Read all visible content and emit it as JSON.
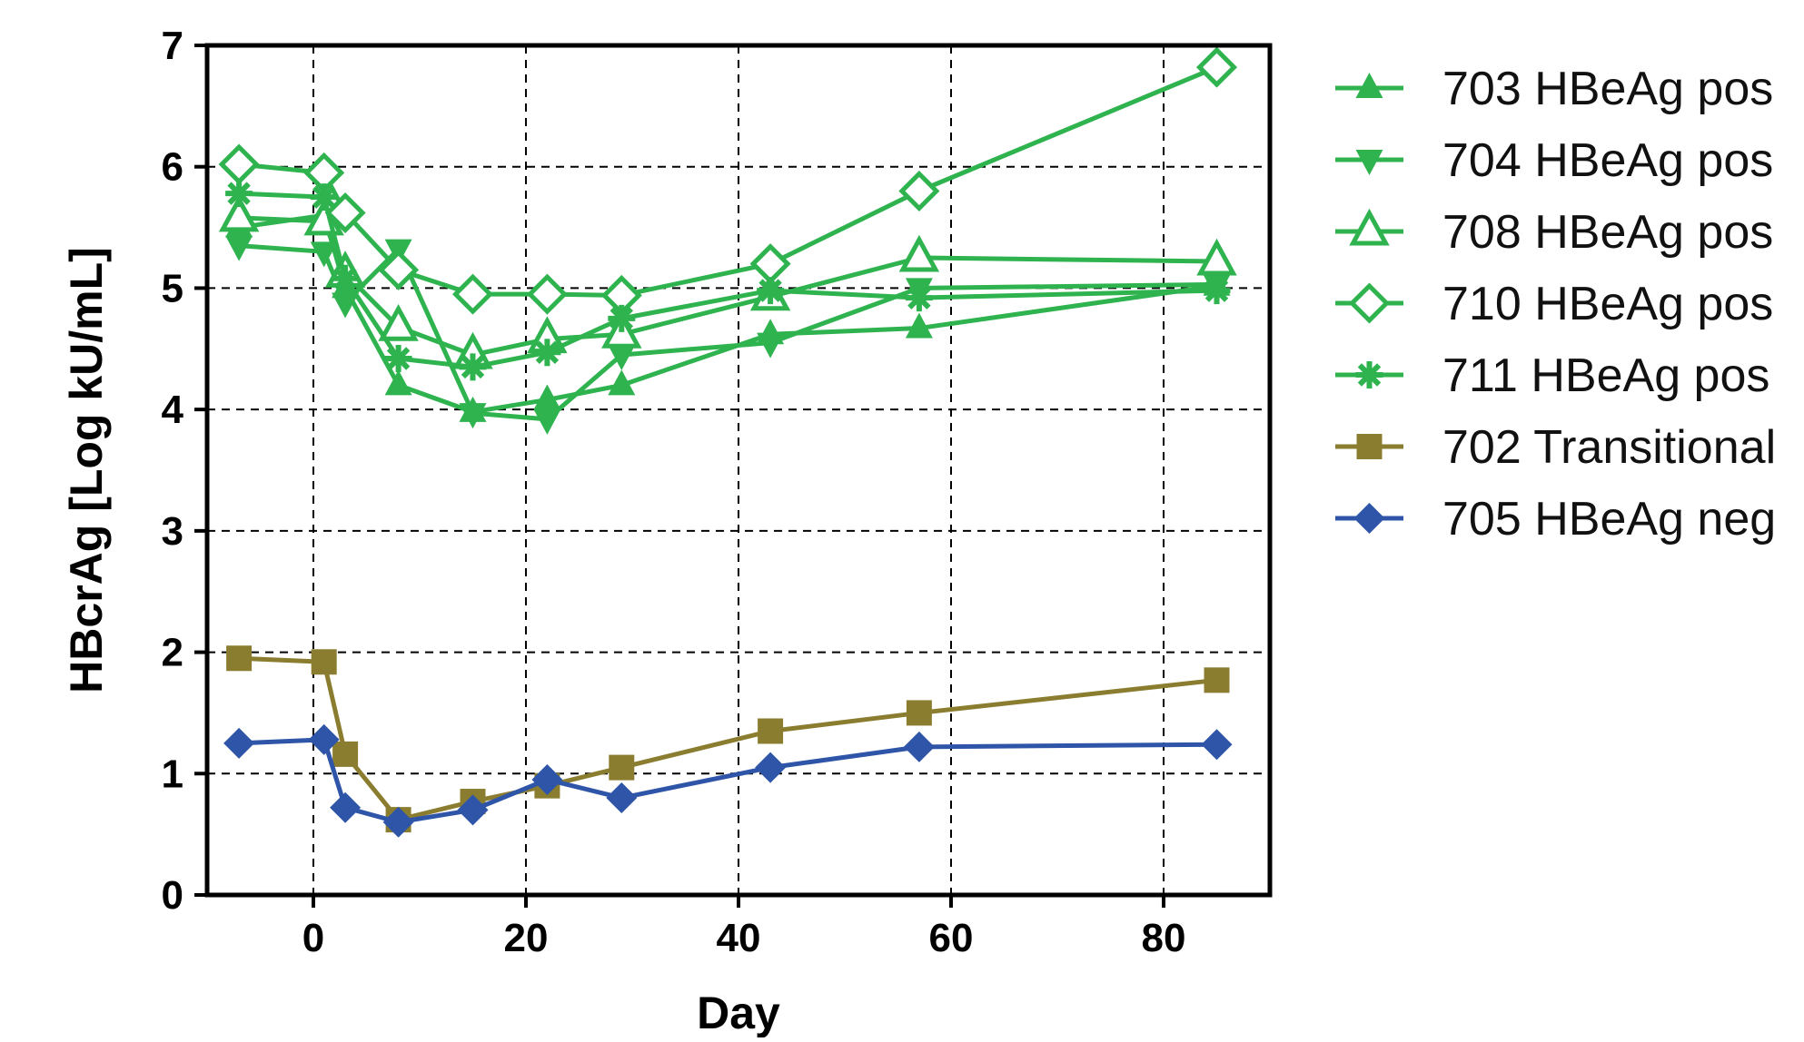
{
  "chart_data": {
    "type": "line",
    "title": "",
    "xlabel": "Day",
    "ylabel": "HBcrAg [Log kU/mL]",
    "xlim": [
      -10,
      90
    ],
    "ylim": [
      0,
      7
    ],
    "xticks": [
      0,
      20,
      40,
      60,
      80
    ],
    "yticks": [
      0,
      1,
      2,
      3,
      4,
      5,
      6,
      7
    ],
    "grid": true,
    "legend_position": "right",
    "series": [
      {
        "name": "703 HBeAg pos",
        "marker": "triangle-up",
        "color": "#2eb34f",
        "x": [
          -7,
          1,
          3,
          8,
          15,
          22,
          29,
          43,
          57,
          85
        ],
        "y": [
          5.5,
          5.6,
          5.0,
          4.2,
          3.98,
          4.08,
          4.2,
          4.62,
          4.67,
          5.02
        ]
      },
      {
        "name": "704 HBeAg pos",
        "marker": "triangle-down",
        "color": "#2eb34f",
        "x": [
          -7,
          1,
          3,
          8,
          15,
          22,
          29,
          43,
          57,
          85
        ],
        "y": [
          5.35,
          5.3,
          4.88,
          5.32,
          3.97,
          3.92,
          4.45,
          4.55,
          5.0,
          5.03
        ]
      },
      {
        "name": "708 HBeAg pos",
        "marker": "triangle-up-open",
        "color": "#2eb34f",
        "x": [
          -7,
          1,
          3,
          8,
          15,
          22,
          29,
          43,
          57,
          85
        ],
        "y": [
          5.58,
          5.55,
          5.12,
          4.68,
          4.45,
          4.58,
          4.62,
          4.93,
          5.25,
          5.22
        ]
      },
      {
        "name": "710 HBeAg pos",
        "marker": "diamond-open",
        "color": "#2eb34f",
        "x": [
          -7,
          1,
          3,
          8,
          15,
          22,
          29,
          43,
          57,
          85
        ],
        "y": [
          6.02,
          5.95,
          5.62,
          5.15,
          4.95,
          4.95,
          4.94,
          5.2,
          5.8,
          6.82
        ]
      },
      {
        "name": "711 HBeAg pos",
        "marker": "asterisk",
        "color": "#2eb34f",
        "x": [
          -7,
          1,
          3,
          8,
          15,
          22,
          29,
          43,
          57,
          85
        ],
        "y": [
          5.78,
          5.75,
          5.08,
          4.42,
          4.35,
          4.47,
          4.75,
          4.98,
          4.92,
          4.98
        ]
      },
      {
        "name": "702 Transitional",
        "marker": "square",
        "color": "#8b7d30",
        "x": [
          -7,
          1,
          3,
          8,
          15,
          22,
          29,
          43,
          57,
          85
        ],
        "y": [
          1.95,
          1.92,
          1.16,
          0.62,
          0.77,
          0.9,
          1.05,
          1.35,
          1.5,
          1.77
        ]
      },
      {
        "name": "705 HBeAg neg",
        "marker": "diamond",
        "color": "#2e55a8",
        "x": [
          -7,
          1,
          3,
          8,
          15,
          22,
          29,
          43,
          57,
          85
        ],
        "y": [
          1.25,
          1.28,
          0.72,
          0.6,
          0.7,
          0.95,
          0.8,
          1.05,
          1.22,
          1.24
        ]
      }
    ]
  }
}
